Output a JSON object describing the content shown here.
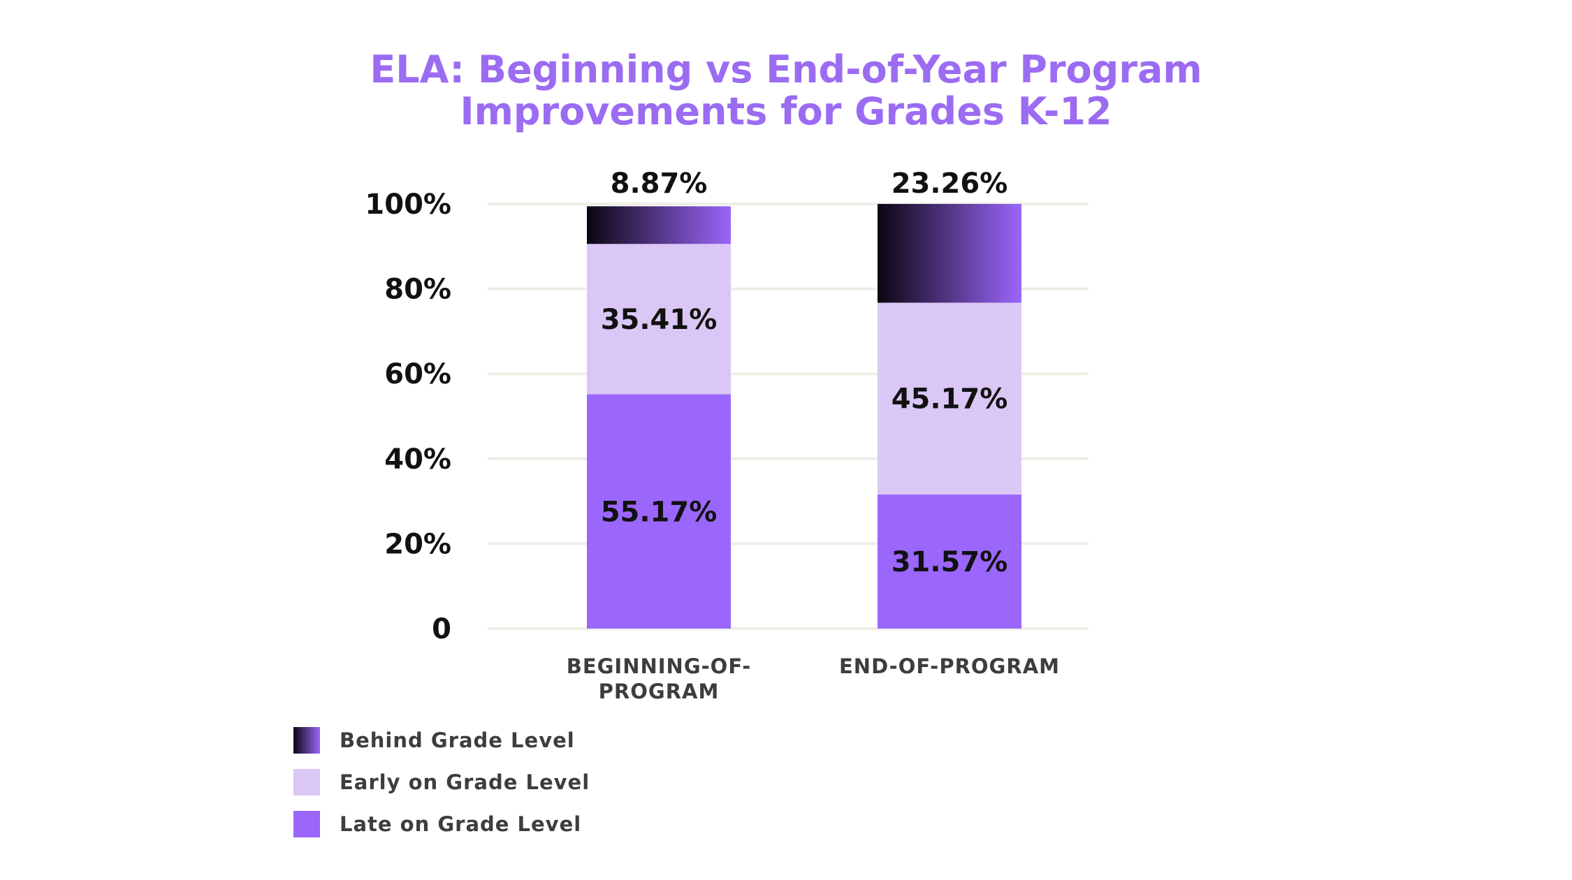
{
  "chart_data": {
    "type": "bar",
    "stacked": true,
    "title": [
      "ELA: Beginning vs End-of-Year Program",
      "Improvements for Grades K-12"
    ],
    "categories": [
      [
        "BEGINNING-OF-",
        "PROGRAM"
      ],
      [
        "END-OF-PROGRAM"
      ]
    ],
    "series": [
      {
        "name": "Late on Grade Level",
        "values": [
          55.17,
          31.57
        ],
        "labels": [
          "55.17%",
          "31.57%"
        ],
        "color": "#9B66FB"
      },
      {
        "name": "Early on Grade Level",
        "values": [
          35.41,
          45.17
        ],
        "labels": [
          "35.41%",
          "45.17%"
        ],
        "color": "#DAC7F5"
      },
      {
        "name": "Behind Grade Level",
        "values": [
          8.87,
          23.26
        ],
        "labels": [
          "8.87%",
          "23.26%"
        ],
        "gradient": [
          "#0B0611",
          "#9B66FB"
        ]
      }
    ],
    "yticks": [
      {
        "value": 0,
        "label": "0"
      },
      {
        "value": 20,
        "label": "20%"
      },
      {
        "value": 40,
        "label": "40%"
      },
      {
        "value": 60,
        "label": "60%"
      },
      {
        "value": 80,
        "label": "80%"
      },
      {
        "value": 100,
        "label": "100%"
      }
    ],
    "ylim": [
      0,
      100
    ],
    "grid": true,
    "legend": [
      {
        "name": "Behind Grade Level",
        "gradient": [
          "#0B0611",
          "#9B66FB"
        ]
      },
      {
        "name": "Early on Grade Level",
        "color": "#DAC7F5"
      },
      {
        "name": "Late on Grade Level",
        "color": "#9B66FB"
      }
    ],
    "legend_position": "bottom-left"
  }
}
